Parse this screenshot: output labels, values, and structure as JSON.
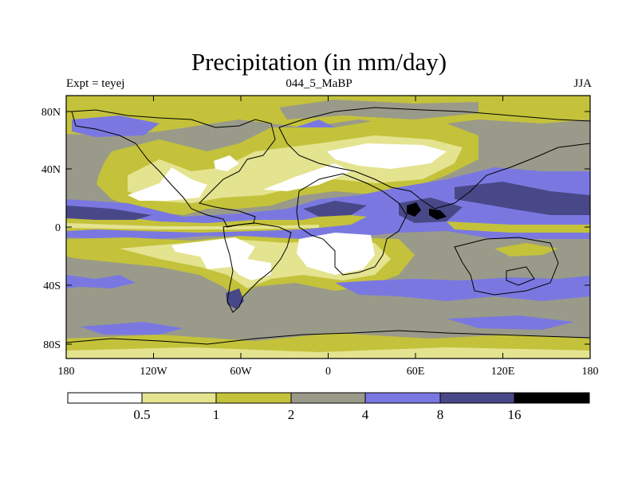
{
  "title": "Precipitation (in mm/day)",
  "left_label": "Expt = teyej",
  "center_label": "044_5_MaBP",
  "right_label": "JJA",
  "lat_ticks": [
    "80N",
    "40N",
    "0",
    "40S",
    "80S"
  ],
  "lon_ticks": [
    "180",
    "120W",
    "60W",
    "0",
    "60E",
    "120E",
    "180"
  ],
  "colorbar": {
    "labels": [
      "0.5",
      "1",
      "2",
      "4",
      "8",
      "16"
    ],
    "colors": [
      "#ffffff",
      "#e4e390",
      "#c4c23a",
      "#9a9a8a",
      "#7a78e0",
      "#484888",
      "#000000"
    ]
  }
}
